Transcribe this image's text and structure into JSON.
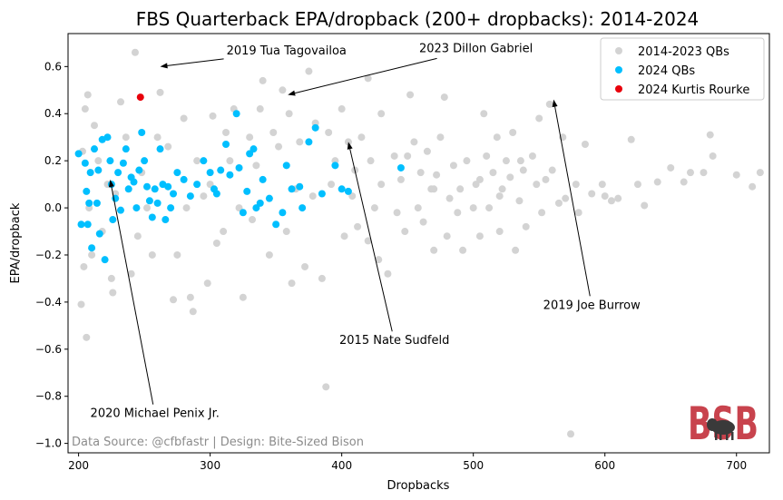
{
  "chart_data": {
    "type": "scatter",
    "title": "FBS Quarterback EPA/dropback (200+ dropbacks): 2014-2024",
    "xlabel": "Dropbacks",
    "ylabel": "EPA/dropback",
    "xlim": [
      192,
      725
    ],
    "ylim": [
      -1.04,
      0.74
    ],
    "xticks": [
      200,
      300,
      400,
      500,
      600,
      700
    ],
    "yticks": [
      -1.0,
      -0.8,
      -0.6,
      -0.4,
      -0.2,
      0.0,
      0.2,
      0.4,
      0.6
    ],
    "ytick_labels": [
      "−1.0",
      "−0.8",
      "−0.6",
      "−0.4",
      "−0.2",
      "0.0",
      "0.2",
      "0.4",
      "0.6"
    ],
    "grid": false,
    "legend_position": "top-right",
    "series": [
      {
        "name": "2014-2023 QBs",
        "color": "#d3d3d3",
        "points": [
          [
            203,
            0.24
          ],
          [
            205,
            0.42
          ],
          [
            207,
            0.48
          ],
          [
            204,
            -0.25
          ],
          [
            208,
            0.0
          ],
          [
            210,
            -0.2
          ],
          [
            202,
            -0.41
          ],
          [
            206,
            -0.55
          ],
          [
            212,
            0.35
          ],
          [
            215,
            0.2
          ],
          [
            218,
            -0.1
          ],
          [
            222,
            0.1
          ],
          [
            225,
            -0.3
          ],
          [
            226,
            -0.36
          ],
          [
            228,
            0.06
          ],
          [
            232,
            0.45
          ],
          [
            236,
            0.3
          ],
          [
            240,
            -0.28
          ],
          [
            245,
            -0.12
          ],
          [
            243,
            0.66
          ],
          [
            248,
            0.15
          ],
          [
            252,
            0.0
          ],
          [
            256,
            -0.2
          ],
          [
            260,
            0.3
          ],
          [
            262,
            0.49
          ],
          [
            268,
            0.26
          ],
          [
            272,
            -0.39
          ],
          [
            275,
            -0.2
          ],
          [
            280,
            0.38
          ],
          [
            282,
            0.0
          ],
          [
            285,
            -0.38
          ],
          [
            287,
            -0.44
          ],
          [
            290,
            0.2
          ],
          [
            295,
            0.05
          ],
          [
            298,
            -0.32
          ],
          [
            300,
            0.1
          ],
          [
            302,
            0.39
          ],
          [
            305,
            -0.15
          ],
          [
            310,
            -0.1
          ],
          [
            312,
            0.32
          ],
          [
            315,
            0.2
          ],
          [
            318,
            0.42
          ],
          [
            322,
            0.0
          ],
          [
            325,
            -0.38
          ],
          [
            330,
            0.3
          ],
          [
            332,
            -0.05
          ],
          [
            335,
            0.18
          ],
          [
            338,
            0.42
          ],
          [
            340,
            0.54
          ],
          [
            345,
            -0.2
          ],
          [
            348,
            0.32
          ],
          [
            352,
            0.26
          ],
          [
            355,
            0.5
          ],
          [
            358,
            -0.1
          ],
          [
            360,
            0.4
          ],
          [
            362,
            -0.32
          ],
          [
            365,
            0.08
          ],
          [
            368,
            0.28
          ],
          [
            372,
            -0.25
          ],
          [
            375,
            0.58
          ],
          [
            378,
            0.05
          ],
          [
            380,
            0.36
          ],
          [
            385,
            -0.3
          ],
          [
            388,
            -0.76
          ],
          [
            390,
            0.32
          ],
          [
            392,
            0.1
          ],
          [
            395,
            0.2
          ],
          [
            400,
            0.42
          ],
          [
            402,
            -0.12
          ],
          [
            405,
            0.28
          ],
          [
            408,
            0.05
          ],
          [
            410,
            0.16
          ],
          [
            412,
            -0.08
          ],
          [
            415,
            0.3
          ],
          [
            420,
            -0.14
          ],
          [
            422,
            0.2
          ],
          [
            425,
            0.0
          ],
          [
            428,
            -0.22
          ],
          [
            430,
            0.1
          ],
          [
            435,
            -0.28
          ],
          [
            440,
            0.22
          ],
          [
            442,
            -0.02
          ],
          [
            445,
            0.12
          ],
          [
            448,
            -0.1
          ],
          [
            450,
            0.22
          ],
          [
            452,
            0.48
          ],
          [
            455,
            0.28
          ],
          [
            458,
            0.0
          ],
          [
            460,
            0.15
          ],
          [
            462,
            -0.06
          ],
          [
            465,
            0.24
          ],
          [
            468,
            0.08
          ],
          [
            470,
            -0.18
          ],
          [
            472,
            0.14
          ],
          [
            475,
            0.3
          ],
          [
            478,
            0.47
          ],
          [
            480,
            -0.12
          ],
          [
            482,
            0.04
          ],
          [
            485,
            0.18
          ],
          [
            488,
            -0.02
          ],
          [
            490,
            0.08
          ],
          [
            492,
            -0.18
          ],
          [
            495,
            0.2
          ],
          [
            500,
            0.0
          ],
          [
            502,
            0.1
          ],
          [
            505,
            -0.12
          ],
          [
            508,
            0.4
          ],
          [
            510,
            0.22
          ],
          [
            512,
            0.0
          ],
          [
            515,
            0.15
          ],
          [
            518,
            0.3
          ],
          [
            520,
            -0.1
          ],
          [
            522,
            0.08
          ],
          [
            525,
            0.2
          ],
          [
            528,
            0.13
          ],
          [
            530,
            0.32
          ],
          [
            532,
            -0.18
          ],
          [
            535,
            0.03
          ],
          [
            538,
            0.16
          ],
          [
            540,
            -0.08
          ],
          [
            545,
            0.22
          ],
          [
            548,
            0.1
          ],
          [
            550,
            0.38
          ],
          [
            552,
            -0.02
          ],
          [
            555,
            0.12
          ],
          [
            558,
            0.44
          ],
          [
            560,
            0.16
          ],
          [
            565,
            0.02
          ],
          [
            568,
            0.3
          ],
          [
            570,
            0.04
          ],
          [
            574,
            -0.96
          ],
          [
            578,
            0.1
          ],
          [
            580,
            -0.02
          ],
          [
            585,
            0.27
          ],
          [
            590,
            0.06
          ],
          [
            598,
            0.1
          ],
          [
            600,
            0.05
          ],
          [
            605,
            0.03
          ],
          [
            610,
            0.04
          ],
          [
            620,
            0.29
          ],
          [
            625,
            0.1
          ],
          [
            630,
            0.01
          ],
          [
            640,
            0.11
          ],
          [
            650,
            0.17
          ],
          [
            660,
            0.11
          ],
          [
            665,
            0.15
          ],
          [
            675,
            0.15
          ],
          [
            680,
            0.31
          ],
          [
            682,
            0.22
          ],
          [
            700,
            0.14
          ],
          [
            712,
            0.09
          ],
          [
            718,
            0.15
          ],
          [
            420,
            0.55
          ],
          [
            430,
            0.4
          ],
          [
            470,
            0.08
          ],
          [
            505,
            0.12
          ],
          [
            520,
            0.05
          ],
          [
            536,
            0.2
          ]
        ]
      },
      {
        "name": "2024 QBs",
        "color": "#00bfff",
        "points": [
          [
            200,
            0.23
          ],
          [
            202,
            -0.07
          ],
          [
            205,
            0.19
          ],
          [
            206,
            0.07
          ],
          [
            207,
            -0.07
          ],
          [
            208,
            0.02
          ],
          [
            209,
            0.15
          ],
          [
            210,
            -0.17
          ],
          [
            212,
            0.25
          ],
          [
            214,
            0.02
          ],
          [
            215,
            0.16
          ],
          [
            216,
            -0.11
          ],
          [
            218,
            0.29
          ],
          [
            220,
            -0.22
          ],
          [
            222,
            0.3
          ],
          [
            224,
            0.2
          ],
          [
            225,
            0.1
          ],
          [
            226,
            -0.05
          ],
          [
            228,
            0.04
          ],
          [
            230,
            0.15
          ],
          [
            232,
            -0.01
          ],
          [
            234,
            0.19
          ],
          [
            236,
            0.25
          ],
          [
            238,
            0.08
          ],
          [
            240,
            0.13
          ],
          [
            242,
            0.11
          ],
          [
            244,
            0.0
          ],
          [
            246,
            0.16
          ],
          [
            248,
            0.32
          ],
          [
            250,
            0.2
          ],
          [
            252,
            0.09
          ],
          [
            254,
            0.03
          ],
          [
            256,
            -0.04
          ],
          [
            258,
            0.08
          ],
          [
            260,
            0.02
          ],
          [
            262,
            0.25
          ],
          [
            264,
            0.1
          ],
          [
            266,
            -0.05
          ],
          [
            268,
            0.09
          ],
          [
            270,
            0.0
          ],
          [
            272,
            0.06
          ],
          [
            275,
            0.15
          ],
          [
            280,
            0.12
          ],
          [
            285,
            0.05
          ],
          [
            290,
            0.1
          ],
          [
            295,
            0.2
          ],
          [
            300,
            0.15
          ],
          [
            303,
            0.08
          ],
          [
            305,
            0.06
          ],
          [
            308,
            0.16
          ],
          [
            312,
            0.27
          ],
          [
            315,
            0.14
          ],
          [
            320,
            0.4
          ],
          [
            322,
            0.17
          ],
          [
            325,
            -0.02
          ],
          [
            328,
            0.07
          ],
          [
            330,
            0.23
          ],
          [
            333,
            0.25
          ],
          [
            335,
            0.0
          ],
          [
            338,
            0.02
          ],
          [
            340,
            0.12
          ],
          [
            345,
            0.04
          ],
          [
            350,
            -0.07
          ],
          [
            355,
            -0.02
          ],
          [
            358,
            0.18
          ],
          [
            362,
            0.08
          ],
          [
            368,
            0.09
          ],
          [
            370,
            0.0
          ],
          [
            375,
            0.28
          ],
          [
            380,
            0.34
          ],
          [
            385,
            0.06
          ],
          [
            395,
            0.18
          ],
          [
            400,
            0.08
          ],
          [
            405,
            0.07
          ],
          [
            445,
            0.17
          ]
        ]
      },
      {
        "name": "2024 Kurtis Rourke",
        "color": "#e8000b",
        "points": [
          [
            247,
            0.47
          ]
        ]
      }
    ],
    "annotations": [
      {
        "text": "2019 Tua Tagovailoa",
        "point": [
          262,
          0.6
        ],
        "text_pos": [
          358,
          0.665
        ]
      },
      {
        "text": "2023 Dillon Gabriel",
        "point": [
          359,
          0.48
        ],
        "text_pos": [
          502,
          0.675
        ]
      },
      {
        "text": "2015 Nate Sudfeld",
        "point": [
          405,
          0.28
        ],
        "text_pos": [
          440,
          -0.565
        ]
      },
      {
        "text": "2019 Joe Burrow",
        "point": [
          561,
          0.46
        ],
        "text_pos": [
          590,
          -0.415
        ]
      },
      {
        "text": "2020 Michael Penix Jr.",
        "point": [
          224,
          0.12
        ],
        "text_pos": [
          258,
          -0.875
        ]
      }
    ],
    "source": "Data Source: @cfbfastr | Design: Bite-Sized Bison",
    "logo_text": "BSB"
  }
}
